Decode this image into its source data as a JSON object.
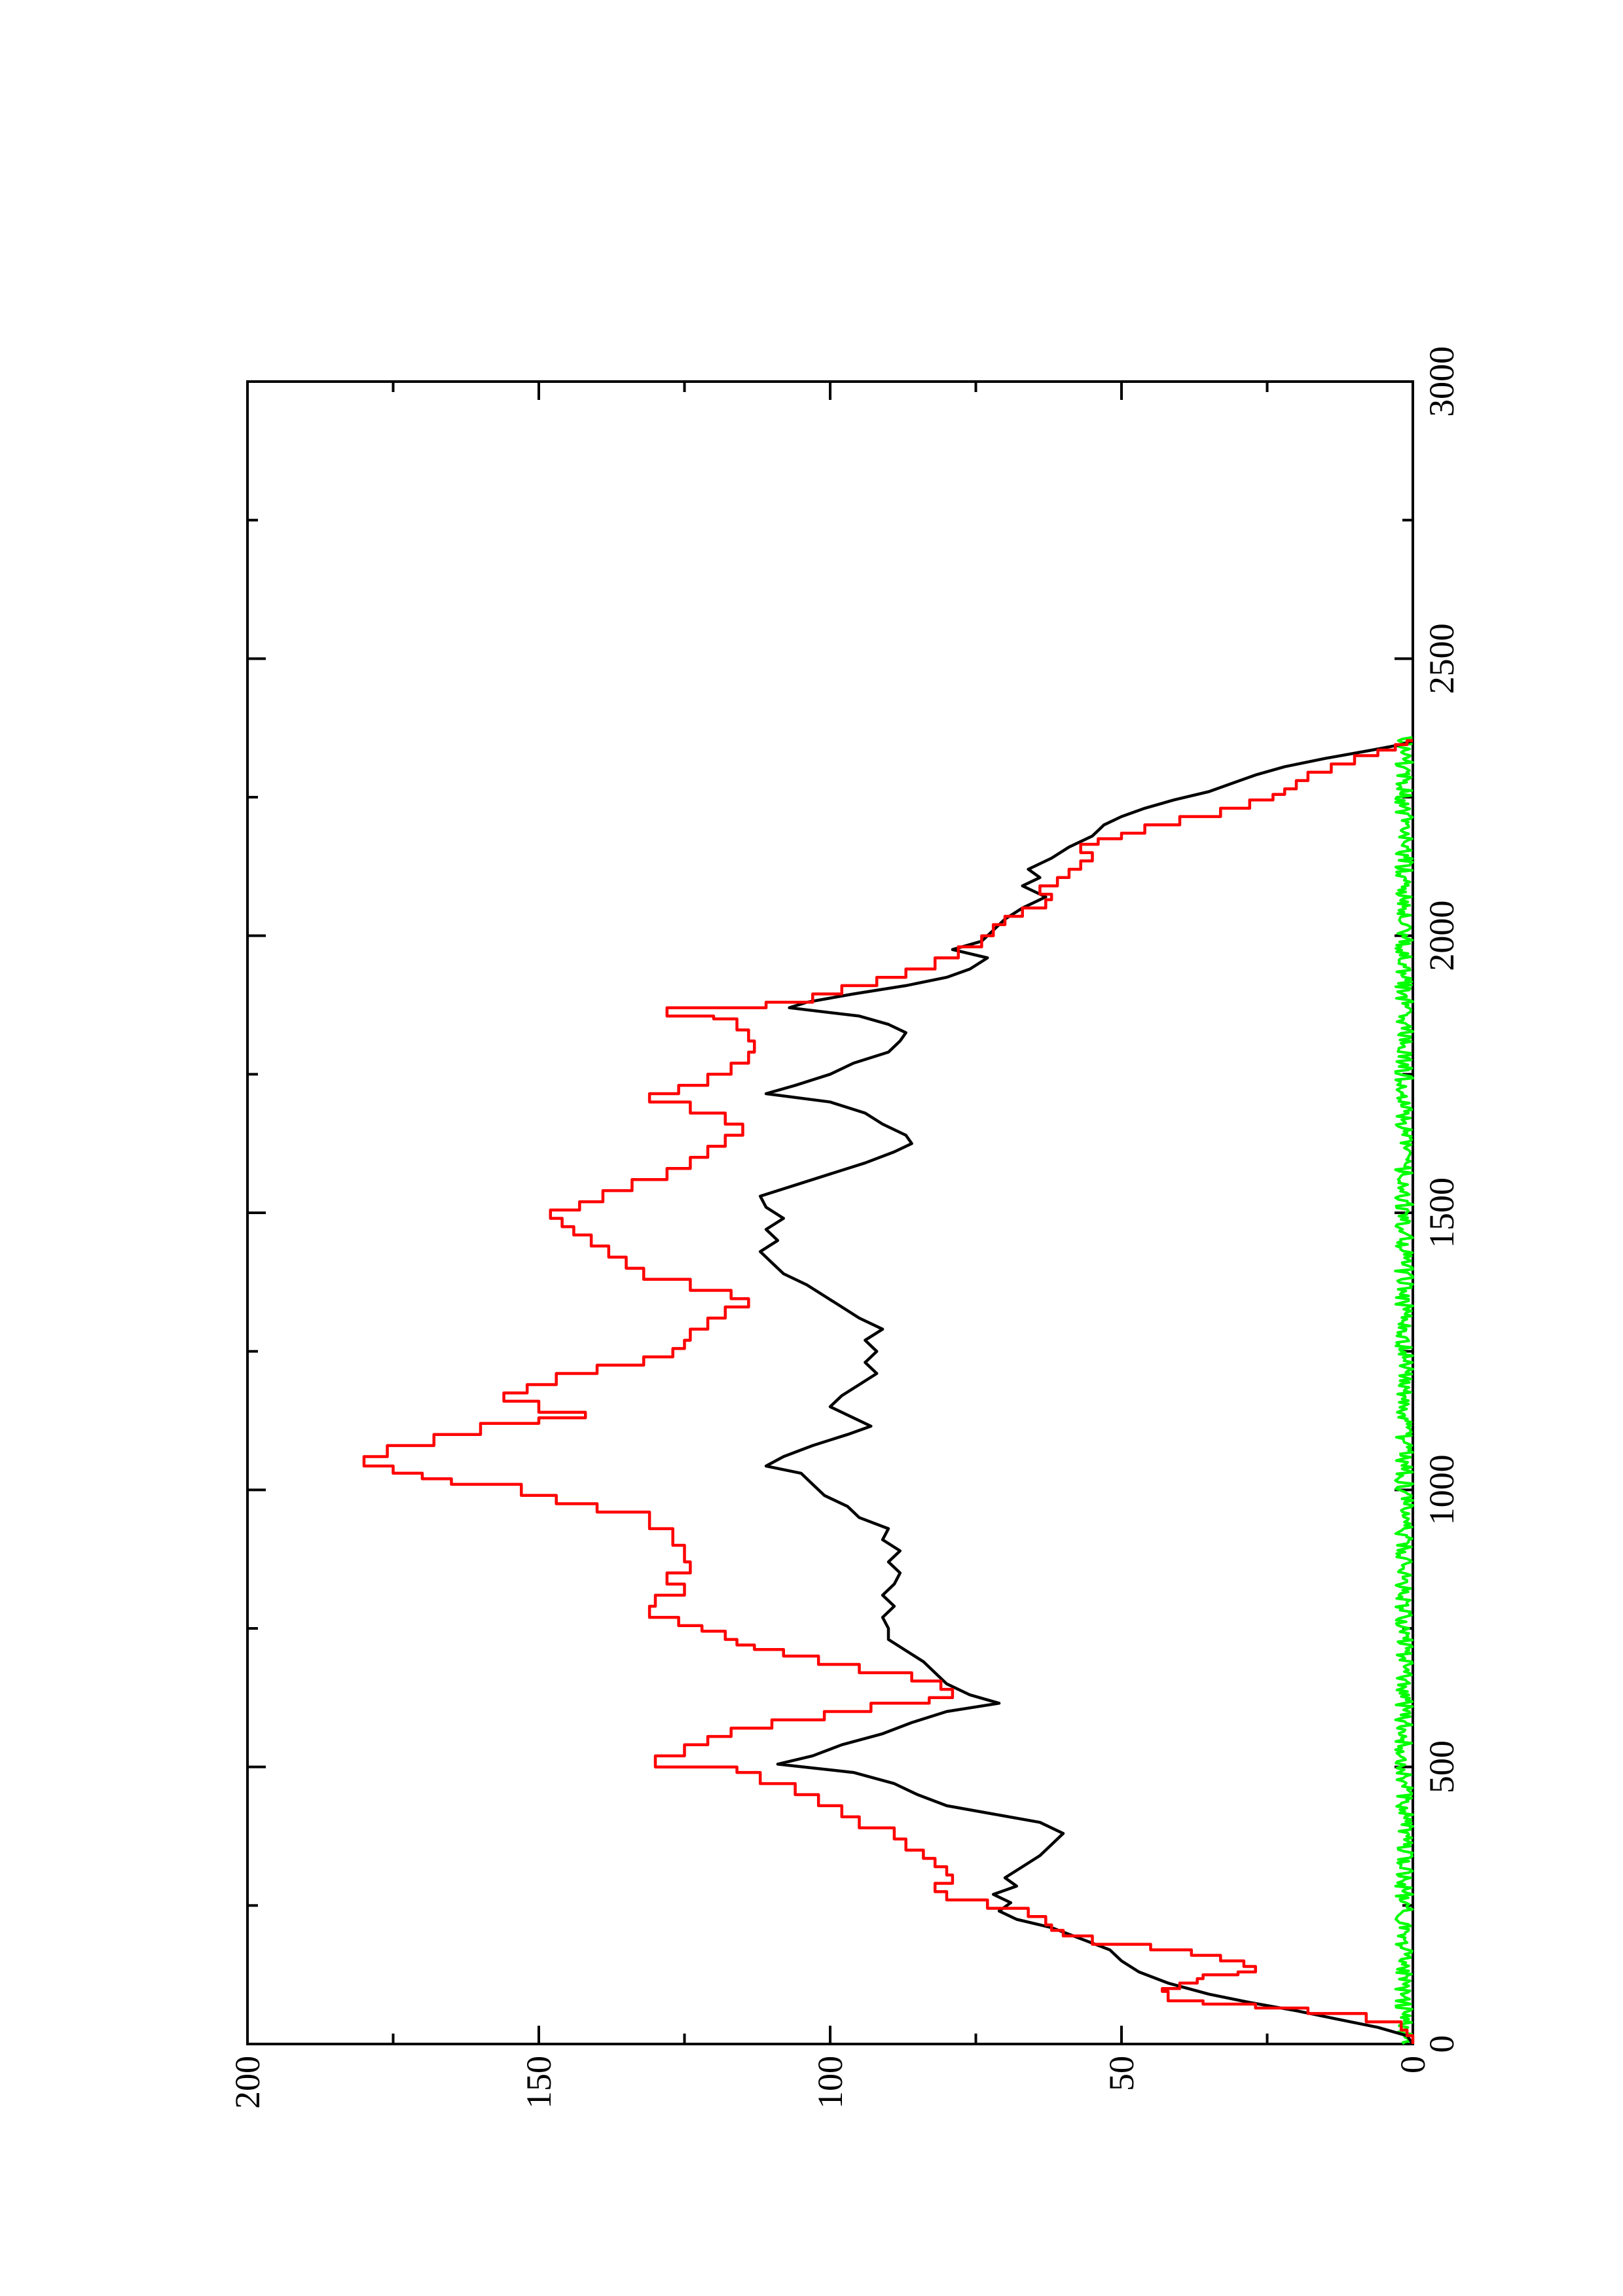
{
  "chart_data": {
    "type": "line",
    "orientation": "rotated-90-ccw",
    "title": "",
    "xlabel": "",
    "ylabel": "",
    "xlim": [
      0,
      3000
    ],
    "ylim": [
      0,
      200
    ],
    "x_ticks": [
      0,
      500,
      1000,
      1500,
      2000,
      2500,
      3000
    ],
    "y_ticks": [
      0,
      50,
      100,
      150,
      200
    ],
    "x_minor_ticks": [
      250,
      750,
      1250,
      1750,
      2250,
      2750
    ],
    "y_minor_ticks": [
      25,
      75,
      125,
      175
    ],
    "grid": false,
    "legend": "none",
    "series": [
      {
        "color": "#ff0000",
        "step": true,
        "points": [
          [
            0,
            0
          ],
          [
            15,
            1
          ],
          [
            25,
            2
          ],
          [
            40,
            8
          ],
          [
            55,
            18
          ],
          [
            65,
            27
          ],
          [
            72,
            36
          ],
          [
            78,
            42
          ],
          [
            95,
            43
          ],
          [
            100,
            40
          ],
          [
            110,
            37
          ],
          [
            118,
            36
          ],
          [
            125,
            30
          ],
          [
            130,
            27
          ],
          [
            140,
            29
          ],
          [
            150,
            33
          ],
          [
            160,
            38
          ],
          [
            170,
            45
          ],
          [
            180,
            55
          ],
          [
            195,
            60
          ],
          [
            205,
            62
          ],
          [
            215,
            63
          ],
          [
            230,
            66
          ],
          [
            245,
            73
          ],
          [
            260,
            80
          ],
          [
            275,
            82
          ],
          [
            290,
            79
          ],
          [
            305,
            80
          ],
          [
            320,
            82
          ],
          [
            335,
            84
          ],
          [
            350,
            87
          ],
          [
            370,
            89
          ],
          [
            390,
            95
          ],
          [
            410,
            98
          ],
          [
            430,
            102
          ],
          [
            450,
            106
          ],
          [
            470,
            112
          ],
          [
            490,
            116
          ],
          [
            500,
            130
          ],
          [
            520,
            125
          ],
          [
            540,
            121
          ],
          [
            555,
            117
          ],
          [
            570,
            110
          ],
          [
            585,
            101
          ],
          [
            600,
            93
          ],
          [
            615,
            83
          ],
          [
            625,
            79
          ],
          [
            640,
            81
          ],
          [
            655,
            86
          ],
          [
            670,
            95
          ],
          [
            685,
            102
          ],
          [
            700,
            108
          ],
          [
            712,
            113
          ],
          [
            720,
            116
          ],
          [
            730,
            118
          ],
          [
            745,
            122
          ],
          [
            755,
            126
          ],
          [
            770,
            131
          ],
          [
            790,
            130
          ],
          [
            810,
            125
          ],
          [
            830,
            128
          ],
          [
            850,
            124
          ],
          [
            870,
            125
          ],
          [
            900,
            127
          ],
          [
            930,
            131
          ],
          [
            960,
            140
          ],
          [
            975,
            147
          ],
          [
            990,
            153
          ],
          [
            1010,
            165
          ],
          [
            1020,
            170
          ],
          [
            1030,
            175
          ],
          [
            1043,
            180
          ],
          [
            1060,
            176
          ],
          [
            1080,
            168
          ],
          [
            1100,
            160
          ],
          [
            1120,
            150
          ],
          [
            1130,
            142
          ],
          [
            1140,
            150
          ],
          [
            1160,
            156
          ],
          [
            1175,
            152
          ],
          [
            1190,
            147
          ],
          [
            1210,
            140
          ],
          [
            1225,
            132
          ],
          [
            1240,
            127
          ],
          [
            1255,
            125
          ],
          [
            1270,
            124
          ],
          [
            1290,
            121
          ],
          [
            1310,
            118
          ],
          [
            1330,
            114
          ],
          [
            1345,
            117
          ],
          [
            1360,
            124
          ],
          [
            1380,
            132
          ],
          [
            1400,
            135
          ],
          [
            1420,
            138
          ],
          [
            1440,
            141
          ],
          [
            1460,
            144
          ],
          [
            1475,
            146
          ],
          [
            1490,
            148
          ],
          [
            1505,
            143
          ],
          [
            1520,
            139
          ],
          [
            1540,
            134
          ],
          [
            1560,
            128
          ],
          [
            1580,
            124
          ],
          [
            1600,
            121
          ],
          [
            1620,
            118
          ],
          [
            1640,
            115
          ],
          [
            1660,
            118
          ],
          [
            1680,
            124
          ],
          [
            1700,
            131
          ],
          [
            1715,
            126
          ],
          [
            1730,
            121
          ],
          [
            1750,
            117
          ],
          [
            1770,
            114
          ],
          [
            1790,
            113
          ],
          [
            1810,
            114
          ],
          [
            1830,
            116
          ],
          [
            1850,
            120
          ],
          [
            1855,
            128
          ],
          [
            1870,
            111
          ],
          [
            1880,
            103
          ],
          [
            1895,
            98
          ],
          [
            1910,
            92
          ],
          [
            1925,
            87
          ],
          [
            1940,
            82
          ],
          [
            1960,
            78
          ],
          [
            1980,
            74
          ],
          [
            2000,
            72
          ],
          [
            2020,
            70
          ],
          [
            2035,
            67
          ],
          [
            2050,
            63
          ],
          [
            2065,
            62
          ],
          [
            2075,
            64
          ],
          [
            2090,
            61
          ],
          [
            2105,
            59
          ],
          [
            2120,
            57
          ],
          [
            2135,
            55
          ],
          [
            2150,
            57
          ],
          [
            2165,
            54
          ],
          [
            2175,
            50
          ],
          [
            2185,
            46
          ],
          [
            2200,
            40
          ],
          [
            2215,
            33
          ],
          [
            2230,
            28
          ],
          [
            2245,
            24
          ],
          [
            2255,
            22
          ],
          [
            2265,
            20
          ],
          [
            2280,
            18
          ],
          [
            2295,
            14
          ],
          [
            2310,
            10
          ],
          [
            2325,
            6
          ],
          [
            2335,
            3
          ],
          [
            2345,
            1
          ],
          [
            2352,
            0
          ]
        ]
      },
      {
        "color": "#000000",
        "step": false,
        "points": [
          [
            0,
            0
          ],
          [
            15,
            1
          ],
          [
            30,
            6
          ],
          [
            45,
            13
          ],
          [
            60,
            20
          ],
          [
            75,
            28
          ],
          [
            90,
            35
          ],
          [
            110,
            42
          ],
          [
            130,
            47
          ],
          [
            150,
            50
          ],
          [
            170,
            52
          ],
          [
            190,
            57
          ],
          [
            210,
            62
          ],
          [
            225,
            68
          ],
          [
            240,
            71
          ],
          [
            255,
            69
          ],
          [
            270,
            72
          ],
          [
            285,
            68
          ],
          [
            300,
            70
          ],
          [
            320,
            67
          ],
          [
            340,
            64
          ],
          [
            360,
            62
          ],
          [
            380,
            60
          ],
          [
            400,
            64
          ],
          [
            415,
            72
          ],
          [
            430,
            80
          ],
          [
            450,
            85
          ],
          [
            470,
            89
          ],
          [
            490,
            96
          ],
          [
            505,
            109
          ],
          [
            520,
            103
          ],
          [
            540,
            98
          ],
          [
            560,
            91
          ],
          [
            580,
            86
          ],
          [
            600,
            80
          ],
          [
            615,
            71
          ],
          [
            630,
            76
          ],
          [
            650,
            80
          ],
          [
            670,
            82
          ],
          [
            690,
            84
          ],
          [
            710,
            87
          ],
          [
            730,
            90
          ],
          [
            750,
            90
          ],
          [
            770,
            91
          ],
          [
            790,
            89
          ],
          [
            810,
            91
          ],
          [
            830,
            89
          ],
          [
            850,
            88
          ],
          [
            870,
            90
          ],
          [
            890,
            88
          ],
          [
            910,
            91
          ],
          [
            930,
            90
          ],
          [
            950,
            95
          ],
          [
            970,
            97
          ],
          [
            990,
            101
          ],
          [
            1010,
            103
          ],
          [
            1030,
            105
          ],
          [
            1043,
            111
          ],
          [
            1060,
            108
          ],
          [
            1080,
            103
          ],
          [
            1100,
            97
          ],
          [
            1115,
            93
          ],
          [
            1130,
            96
          ],
          [
            1150,
            100
          ],
          [
            1170,
            98
          ],
          [
            1190,
            95
          ],
          [
            1210,
            92
          ],
          [
            1230,
            94
          ],
          [
            1250,
            92
          ],
          [
            1270,
            94
          ],
          [
            1290,
            91
          ],
          [
            1310,
            95
          ],
          [
            1330,
            98
          ],
          [
            1350,
            101
          ],
          [
            1370,
            104
          ],
          [
            1390,
            108
          ],
          [
            1410,
            110
          ],
          [
            1430,
            112
          ],
          [
            1450,
            109
          ],
          [
            1470,
            111
          ],
          [
            1490,
            108
          ],
          [
            1510,
            111
          ],
          [
            1530,
            112
          ],
          [
            1550,
            106
          ],
          [
            1570,
            100
          ],
          [
            1590,
            94
          ],
          [
            1610,
            89
          ],
          [
            1625,
            86
          ],
          [
            1640,
            87
          ],
          [
            1660,
            91
          ],
          [
            1680,
            94
          ],
          [
            1700,
            100
          ],
          [
            1715,
            111
          ],
          [
            1730,
            106
          ],
          [
            1750,
            100
          ],
          [
            1770,
            96
          ],
          [
            1790,
            90
          ],
          [
            1810,
            88
          ],
          [
            1825,
            87
          ],
          [
            1840,
            90
          ],
          [
            1855,
            95
          ],
          [
            1870,
            107
          ],
          [
            1880,
            104
          ],
          [
            1895,
            96
          ],
          [
            1910,
            87
          ],
          [
            1925,
            80
          ],
          [
            1940,
            76
          ],
          [
            1960,
            73
          ],
          [
            1975,
            79
          ],
          [
            1990,
            74
          ],
          [
            2010,
            72
          ],
          [
            2030,
            70
          ],
          [
            2050,
            67
          ],
          [
            2070,
            63
          ],
          [
            2090,
            67
          ],
          [
            2105,
            64
          ],
          [
            2120,
            66
          ],
          [
            2140,
            62
          ],
          [
            2160,
            59
          ],
          [
            2180,
            55
          ],
          [
            2200,
            53
          ],
          [
            2215,
            50
          ],
          [
            2230,
            46
          ],
          [
            2245,
            41
          ],
          [
            2260,
            35
          ],
          [
            2275,
            31
          ],
          [
            2290,
            27
          ],
          [
            2305,
            22
          ],
          [
            2320,
            15
          ],
          [
            2335,
            7
          ],
          [
            2345,
            2
          ],
          [
            2352,
            0
          ]
        ]
      },
      {
        "color": "#00ff00",
        "step": false,
        "noise_max": 3,
        "x_range": [
          0,
          2360
        ],
        "points": []
      }
    ]
  }
}
